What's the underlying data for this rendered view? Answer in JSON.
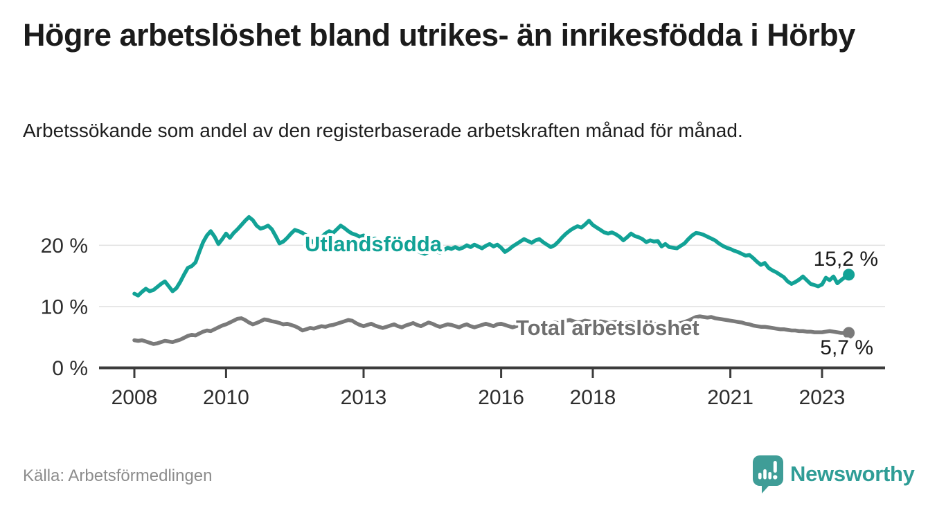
{
  "header": {
    "title": "Högre arbetslöshet bland utrikes- än inrikesfödda i Hörby",
    "subtitle": "Arbetssökande som andel av den registerbaserade arbetskraften månad för månad."
  },
  "chart_data": {
    "type": "line",
    "unit": "%",
    "x_start_year": 2008,
    "x_step_months": 1,
    "x_end_label_period": "2023",
    "ylim": [
      0,
      26
    ],
    "grid": true,
    "legend_position": "inline-labels",
    "y_ticks": [
      {
        "value": 0,
        "label": "0 %"
      },
      {
        "value": 10,
        "label": "10 %"
      },
      {
        "value": 20,
        "label": "20 %"
      }
    ],
    "x_ticks": [
      {
        "value": 2008,
        "label": "2008"
      },
      {
        "value": 2010,
        "label": "2010"
      },
      {
        "value": 2013,
        "label": "2013"
      },
      {
        "value": 2016,
        "label": "2016"
      },
      {
        "value": 2018,
        "label": "2018"
      },
      {
        "value": 2021,
        "label": "2021"
      },
      {
        "value": 2023,
        "label": "2023"
      }
    ],
    "series": [
      {
        "name": "Utlandsfödda",
        "color": "#12a296",
        "end_label": "15,2 %",
        "last_value": 15.2,
        "values": [
          12.1,
          11.8,
          12.4,
          12.9,
          12.5,
          12.7,
          13.2,
          13.7,
          14.1,
          13.3,
          12.5,
          13.0,
          14.0,
          15.2,
          16.3,
          16.6,
          17.2,
          18.9,
          20.5,
          21.6,
          22.3,
          21.4,
          20.2,
          21.0,
          21.9,
          21.2,
          22.0,
          22.6,
          23.3,
          24.0,
          24.6,
          24.1,
          23.2,
          22.7,
          22.9,
          23.2,
          22.6,
          21.5,
          20.3,
          20.6,
          21.2,
          21.9,
          22.5,
          22.3,
          22.0,
          21.6,
          20.9,
          20.4,
          20.8,
          21.3,
          21.9,
          22.3,
          22.0,
          22.6,
          23.2,
          22.8,
          22.3,
          21.9,
          21.7,
          21.4,
          21.6,
          21.2,
          20.9,
          21.1,
          20.7,
          20.4,
          20.1,
          19.8,
          20.0,
          19.6,
          19.3,
          19.5,
          19.2,
          18.9,
          19.1,
          18.8,
          18.6,
          18.9,
          19.3,
          19.0,
          18.8,
          19.2,
          19.6,
          19.4,
          19.7,
          19.4,
          19.6,
          20.0,
          19.7,
          20.1,
          19.8,
          19.5,
          19.9,
          20.2,
          19.8,
          20.1,
          19.6,
          18.9,
          19.3,
          19.8,
          20.2,
          20.6,
          21.0,
          20.7,
          20.4,
          20.8,
          21.0,
          20.5,
          20.1,
          19.7,
          20.0,
          20.6,
          21.3,
          21.9,
          22.4,
          22.8,
          23.1,
          22.9,
          23.4,
          24.0,
          23.3,
          22.9,
          22.5,
          22.1,
          21.9,
          22.1,
          21.8,
          21.4,
          20.8,
          21.3,
          21.9,
          21.5,
          21.3,
          21.0,
          20.5,
          20.8,
          20.6,
          20.7,
          19.8,
          20.2,
          19.7,
          19.6,
          19.5,
          19.9,
          20.3,
          21.0,
          21.6,
          22.0,
          21.9,
          21.7,
          21.4,
          21.1,
          20.8,
          20.3,
          19.9,
          19.6,
          19.4,
          19.1,
          18.9,
          18.6,
          18.3,
          18.4,
          17.9,
          17.3,
          16.8,
          17.1,
          16.3,
          15.9,
          15.6,
          15.2,
          14.8,
          14.1,
          13.7,
          14.0,
          14.4,
          14.9,
          14.3,
          13.7,
          13.5,
          13.3,
          13.6,
          14.7,
          14.3,
          14.9,
          13.8,
          14.3,
          14.8,
          15.2
        ]
      },
      {
        "name": "Total arbetslöshet",
        "color": "#7a7a7a",
        "end_label": "5,7 %",
        "last_value": 5.7,
        "values": [
          4.5,
          4.4,
          4.5,
          4.3,
          4.1,
          3.9,
          4.0,
          4.2,
          4.4,
          4.3,
          4.2,
          4.4,
          4.6,
          4.9,
          5.2,
          5.4,
          5.3,
          5.6,
          5.9,
          6.1,
          6.0,
          6.3,
          6.6,
          6.9,
          7.1,
          7.4,
          7.7,
          8.0,
          8.1,
          7.8,
          7.4,
          7.1,
          7.3,
          7.6,
          7.9,
          7.8,
          7.6,
          7.5,
          7.3,
          7.1,
          7.2,
          7.0,
          6.8,
          6.5,
          6.1,
          6.3,
          6.5,
          6.4,
          6.6,
          6.8,
          6.7,
          6.9,
          7.0,
          7.2,
          7.4,
          7.6,
          7.8,
          7.7,
          7.3,
          7.0,
          6.8,
          7.0,
          7.2,
          6.9,
          6.7,
          6.5,
          6.7,
          6.9,
          7.1,
          6.8,
          6.6,
          6.9,
          7.1,
          7.3,
          7.0,
          6.8,
          7.1,
          7.4,
          7.2,
          6.9,
          6.7,
          6.9,
          7.1,
          7.0,
          6.8,
          6.6,
          6.9,
          7.1,
          6.8,
          6.6,
          6.8,
          7.0,
          7.2,
          7.0,
          6.8,
          7.1,
          7.2,
          7.0,
          6.8,
          6.6,
          6.8,
          7.0,
          7.2,
          7.1,
          6.9,
          6.7,
          6.9,
          7.1,
          7.0,
          7.2,
          7.4,
          7.3,
          7.5,
          7.7,
          7.8,
          7.6,
          7.4,
          7.5,
          7.7,
          7.6,
          7.5,
          7.4,
          7.6,
          7.5,
          7.3,
          7.4,
          7.5,
          7.3,
          7.2,
          7.3,
          7.4,
          7.3,
          7.2,
          7.1,
          7.2,
          7.3,
          7.2,
          7.1,
          7.0,
          7.1,
          7.2,
          7.1,
          7.2,
          7.3,
          7.5,
          7.7,
          8.0,
          8.3,
          8.4,
          8.3,
          8.2,
          8.3,
          8.1,
          8.0,
          7.9,
          7.8,
          7.7,
          7.6,
          7.5,
          7.4,
          7.2,
          7.1,
          6.9,
          6.8,
          6.7,
          6.7,
          6.6,
          6.5,
          6.4,
          6.3,
          6.3,
          6.2,
          6.1,
          6.1,
          6.0,
          6.0,
          5.9,
          5.9,
          5.8,
          5.8,
          5.8,
          5.9,
          6.0,
          5.9,
          5.8,
          5.7,
          5.7,
          5.7
        ]
      }
    ]
  },
  "footer": {
    "source": "Källa: Arbetsförmedlingen",
    "brand": "Newsworthy"
  },
  "colors": {
    "accent_teal": "#12a296",
    "line_gray": "#7a7a7a",
    "series_label_gray": "#6f6f6f",
    "grid": "#e0e0e0",
    "axis": "#3c3c3c",
    "tick_label": "#2d2d2d",
    "value_label": "#1a1a1a",
    "brand_teal": "#2f9d96",
    "logo_fill": "#3f9d97"
  }
}
